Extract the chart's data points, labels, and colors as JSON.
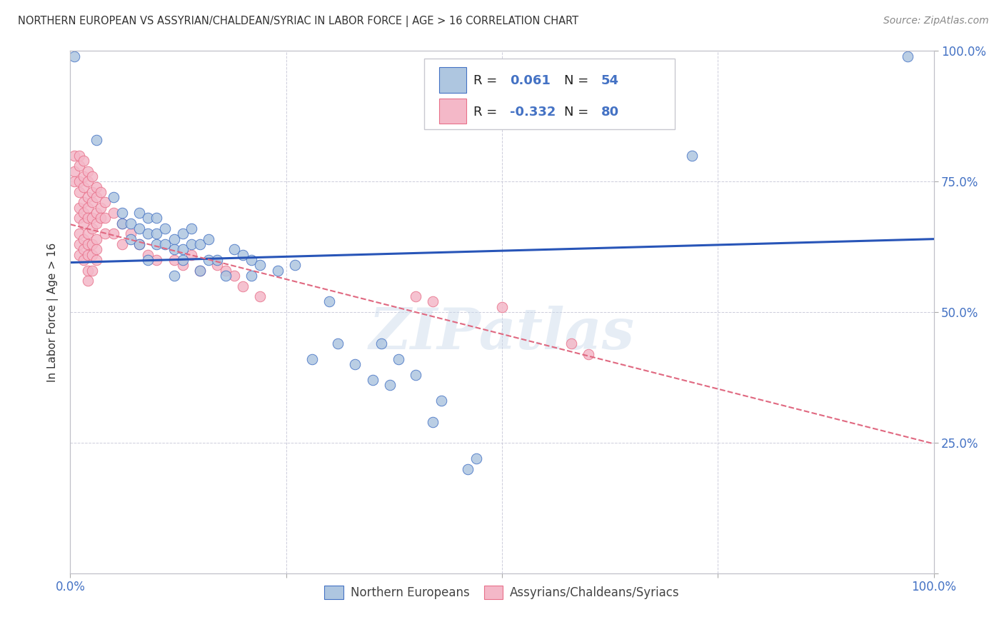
{
  "title": "NORTHERN EUROPEAN VS ASSYRIAN/CHALDEAN/SYRIAC IN LABOR FORCE | AGE > 16 CORRELATION CHART",
  "source": "Source: ZipAtlas.com",
  "ylabel": "In Labor Force | Age > 16",
  "watermark": "ZIPatlas",
  "blue_color": "#aec6e0",
  "blue_edge": "#4472c4",
  "pink_color": "#f4b8c8",
  "pink_edge": "#e8708a",
  "trend_blue": "#2855b8",
  "trend_pink": "#e06880",
  "grid_color": "#c8c8d8",
  "right_tick_color": "#4472c4",
  "blue_scatter": [
    [
      0.005,
      0.99
    ],
    [
      0.03,
      0.83
    ],
    [
      0.05,
      0.72
    ],
    [
      0.06,
      0.67
    ],
    [
      0.06,
      0.69
    ],
    [
      0.07,
      0.64
    ],
    [
      0.07,
      0.67
    ],
    [
      0.08,
      0.66
    ],
    [
      0.08,
      0.69
    ],
    [
      0.08,
      0.63
    ],
    [
      0.09,
      0.65
    ],
    [
      0.09,
      0.68
    ],
    [
      0.09,
      0.6
    ],
    [
      0.1,
      0.65
    ],
    [
      0.1,
      0.63
    ],
    [
      0.1,
      0.68
    ],
    [
      0.11,
      0.66
    ],
    [
      0.11,
      0.63
    ],
    [
      0.12,
      0.57
    ],
    [
      0.12,
      0.64
    ],
    [
      0.12,
      0.62
    ],
    [
      0.13,
      0.62
    ],
    [
      0.13,
      0.65
    ],
    [
      0.13,
      0.6
    ],
    [
      0.14,
      0.63
    ],
    [
      0.14,
      0.66
    ],
    [
      0.15,
      0.63
    ],
    [
      0.15,
      0.58
    ],
    [
      0.16,
      0.6
    ],
    [
      0.16,
      0.64
    ],
    [
      0.17,
      0.6
    ],
    [
      0.18,
      0.57
    ],
    [
      0.19,
      0.62
    ],
    [
      0.2,
      0.61
    ],
    [
      0.21,
      0.57
    ],
    [
      0.21,
      0.6
    ],
    [
      0.22,
      0.59
    ],
    [
      0.24,
      0.58
    ],
    [
      0.26,
      0.59
    ],
    [
      0.28,
      0.41
    ],
    [
      0.3,
      0.52
    ],
    [
      0.31,
      0.44
    ],
    [
      0.33,
      0.4
    ],
    [
      0.35,
      0.37
    ],
    [
      0.36,
      0.44
    ],
    [
      0.37,
      0.36
    ],
    [
      0.38,
      0.41
    ],
    [
      0.4,
      0.38
    ],
    [
      0.42,
      0.29
    ],
    [
      0.43,
      0.33
    ],
    [
      0.46,
      0.2
    ],
    [
      0.47,
      0.22
    ],
    [
      0.72,
      0.8
    ],
    [
      0.97,
      0.99
    ]
  ],
  "pink_scatter": [
    [
      0.005,
      0.8
    ],
    [
      0.005,
      0.77
    ],
    [
      0.005,
      0.75
    ],
    [
      0.01,
      0.8
    ],
    [
      0.01,
      0.78
    ],
    [
      0.01,
      0.75
    ],
    [
      0.01,
      0.73
    ],
    [
      0.01,
      0.7
    ],
    [
      0.01,
      0.68
    ],
    [
      0.01,
      0.65
    ],
    [
      0.01,
      0.63
    ],
    [
      0.01,
      0.61
    ],
    [
      0.015,
      0.79
    ],
    [
      0.015,
      0.76
    ],
    [
      0.015,
      0.74
    ],
    [
      0.015,
      0.71
    ],
    [
      0.015,
      0.69
    ],
    [
      0.015,
      0.67
    ],
    [
      0.015,
      0.64
    ],
    [
      0.015,
      0.62
    ],
    [
      0.015,
      0.6
    ],
    [
      0.02,
      0.77
    ],
    [
      0.02,
      0.75
    ],
    [
      0.02,
      0.72
    ],
    [
      0.02,
      0.7
    ],
    [
      0.02,
      0.68
    ],
    [
      0.02,
      0.65
    ],
    [
      0.02,
      0.63
    ],
    [
      0.02,
      0.61
    ],
    [
      0.02,
      0.58
    ],
    [
      0.02,
      0.56
    ],
    [
      0.025,
      0.76
    ],
    [
      0.025,
      0.73
    ],
    [
      0.025,
      0.71
    ],
    [
      0.025,
      0.68
    ],
    [
      0.025,
      0.66
    ],
    [
      0.025,
      0.63
    ],
    [
      0.025,
      0.61
    ],
    [
      0.025,
      0.58
    ],
    [
      0.03,
      0.74
    ],
    [
      0.03,
      0.72
    ],
    [
      0.03,
      0.69
    ],
    [
      0.03,
      0.67
    ],
    [
      0.03,
      0.64
    ],
    [
      0.03,
      0.62
    ],
    [
      0.03,
      0.6
    ],
    [
      0.035,
      0.73
    ],
    [
      0.035,
      0.7
    ],
    [
      0.035,
      0.68
    ],
    [
      0.04,
      0.71
    ],
    [
      0.04,
      0.68
    ],
    [
      0.04,
      0.65
    ],
    [
      0.05,
      0.69
    ],
    [
      0.05,
      0.65
    ],
    [
      0.06,
      0.67
    ],
    [
      0.06,
      0.63
    ],
    [
      0.07,
      0.65
    ],
    [
      0.08,
      0.63
    ],
    [
      0.09,
      0.61
    ],
    [
      0.1,
      0.6
    ],
    [
      0.12,
      0.6
    ],
    [
      0.13,
      0.59
    ],
    [
      0.14,
      0.61
    ],
    [
      0.15,
      0.58
    ],
    [
      0.17,
      0.59
    ],
    [
      0.18,
      0.58
    ],
    [
      0.19,
      0.57
    ],
    [
      0.2,
      0.55
    ],
    [
      0.22,
      0.53
    ],
    [
      0.4,
      0.53
    ],
    [
      0.42,
      0.52
    ],
    [
      0.5,
      0.51
    ],
    [
      0.58,
      0.44
    ],
    [
      0.6,
      0.42
    ]
  ],
  "yticks": [
    0.0,
    0.25,
    0.5,
    0.75,
    1.0
  ],
  "ytick_labels_right": [
    "",
    "25.0%",
    "50.0%",
    "75.0%",
    "100.0%"
  ],
  "xticks": [
    0.0,
    0.25,
    0.5,
    0.75,
    1.0
  ],
  "xtick_labels": [
    "0.0%",
    "",
    "",
    "",
    "100.0%"
  ],
  "xlim": [
    0.0,
    1.0
  ],
  "ylim": [
    0.0,
    1.0
  ]
}
